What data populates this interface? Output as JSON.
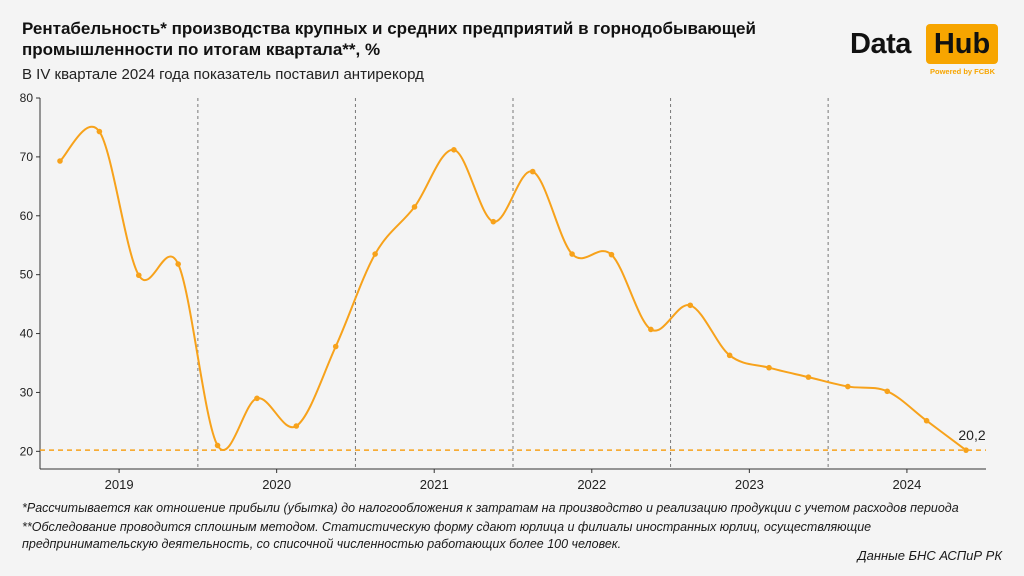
{
  "header": {
    "title": "Рентабельность* производства крупных и средних предприятий в горнодобывающей промышленности по итогам квартала**, %",
    "subtitle": "В IV квартале 2024 года показатель поставил антирекорд"
  },
  "logo": {
    "data_text": "Data",
    "hub_text": "Hub",
    "powered": "Powered by FCBK",
    "accent_color": "#f7a500"
  },
  "chart_data": {
    "type": "line",
    "title": "Рентабельность производства, %",
    "categories": [
      "2019 Q1",
      "2019 Q2",
      "2019 Q3",
      "2019 Q4",
      "2020 Q1",
      "2020 Q2",
      "2020 Q3",
      "2020 Q4",
      "2021 Q1",
      "2021 Q2",
      "2021 Q3",
      "2021 Q4",
      "2022 Q1",
      "2022 Q2",
      "2022 Q3",
      "2022 Q4",
      "2023 Q1",
      "2023 Q2",
      "2023 Q3",
      "2023 Q4",
      "2024 Q1",
      "2024 Q2",
      "2024 Q3",
      "2024 Q4"
    ],
    "values": [
      69.3,
      74.3,
      49.9,
      51.8,
      21.0,
      29.0,
      24.3,
      37.8,
      53.5,
      61.5,
      71.2,
      59.0,
      67.5,
      53.5,
      53.4,
      40.7,
      44.8,
      36.3,
      34.2,
      32.6,
      31.0,
      30.2,
      25.2,
      20.2
    ],
    "year_labels": [
      "2019",
      "2020",
      "2021",
      "2022",
      "2023",
      "2024"
    ],
    "y_ticks": [
      20,
      30,
      40,
      50,
      60,
      70,
      80
    ],
    "ylim": [
      17,
      80
    ],
    "reference_line": 20.2,
    "last_label": "20,2",
    "line_color": "#f7a21b",
    "grid": false
  },
  "footnotes": {
    "note1": "*Рассчитывается как отношение прибыли (убытка) до налогообложения к затратам на производство и реализацию продукции с учетом расходов периода",
    "note2": "**Обследование проводится сплошным методом. Статистическую форму сдают юрлица и филиалы иностранных юрлиц, осуществляющие предпринимательскую деятельность, со списочной численностью работающих более 100 человек.",
    "source": "Данные БНС АСПиР РК"
  }
}
